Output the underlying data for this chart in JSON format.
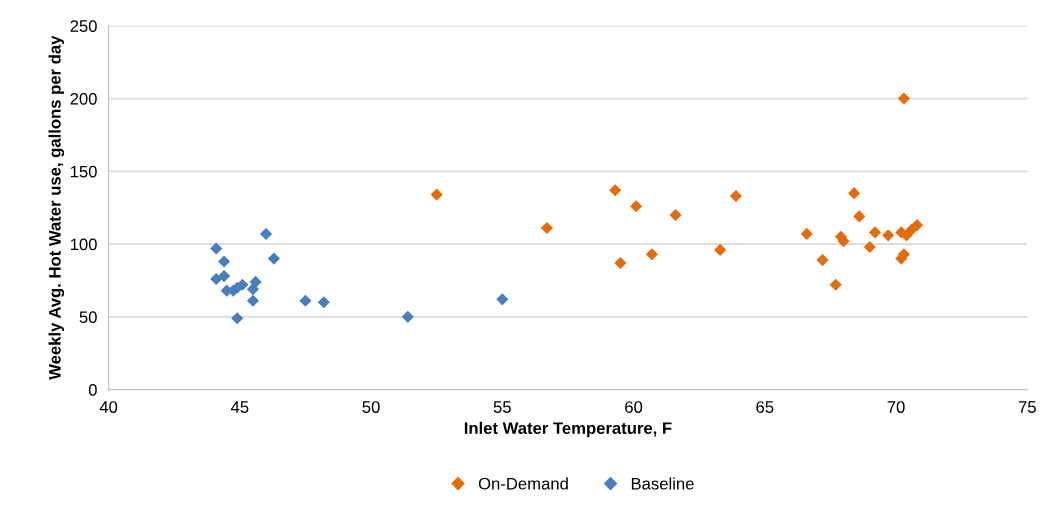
{
  "chart_data": {
    "type": "scatter",
    "xlabel": "Inlet Water Temperature, F",
    "ylabel": "Weekly Avg. Hot Water use, gallons per day",
    "xlim": [
      40,
      75
    ],
    "xticks": [
      40,
      45,
      50,
      55,
      60,
      65,
      70,
      75
    ],
    "ylim": [
      0,
      250
    ],
    "yticks": [
      0,
      50,
      100,
      150,
      200,
      250
    ],
    "grid": "y",
    "legend": "bottom",
    "marker": "diamond",
    "series": [
      {
        "name": "On-Demand",
        "color": "#e36c09",
        "x": [
          52.5,
          56.7,
          59.3,
          59.5,
          60.1,
          60.7,
          61.6,
          63.3,
          63.9,
          66.6,
          67.2,
          67.7,
          67.9,
          68.0,
          68.4,
          68.6,
          69.0,
          69.2,
          69.7,
          70.2,
          70.2,
          70.3,
          70.3,
          70.4,
          70.6,
          70.8
        ],
        "values": [
          134,
          111,
          137,
          87,
          126,
          93,
          120,
          96,
          133,
          107,
          89,
          72,
          105,
          102,
          135,
          119,
          98,
          108,
          106,
          108,
          90,
          93,
          200,
          106,
          110,
          113
        ]
      },
      {
        "name": "Baseline",
        "color": "#4a7ebb",
        "x": [
          46.0,
          44.1,
          44.4,
          46.3,
          44.1,
          44.4,
          44.5,
          44.75,
          44.9,
          45.1,
          45.6,
          45.5,
          45.5,
          47.5,
          48.2,
          55.0,
          44.9,
          51.4
        ],
        "values": [
          107,
          97,
          88,
          90,
          76,
          78,
          68,
          68,
          70,
          72,
          74,
          69,
          61,
          61,
          60,
          62,
          49,
          50
        ]
      }
    ]
  }
}
